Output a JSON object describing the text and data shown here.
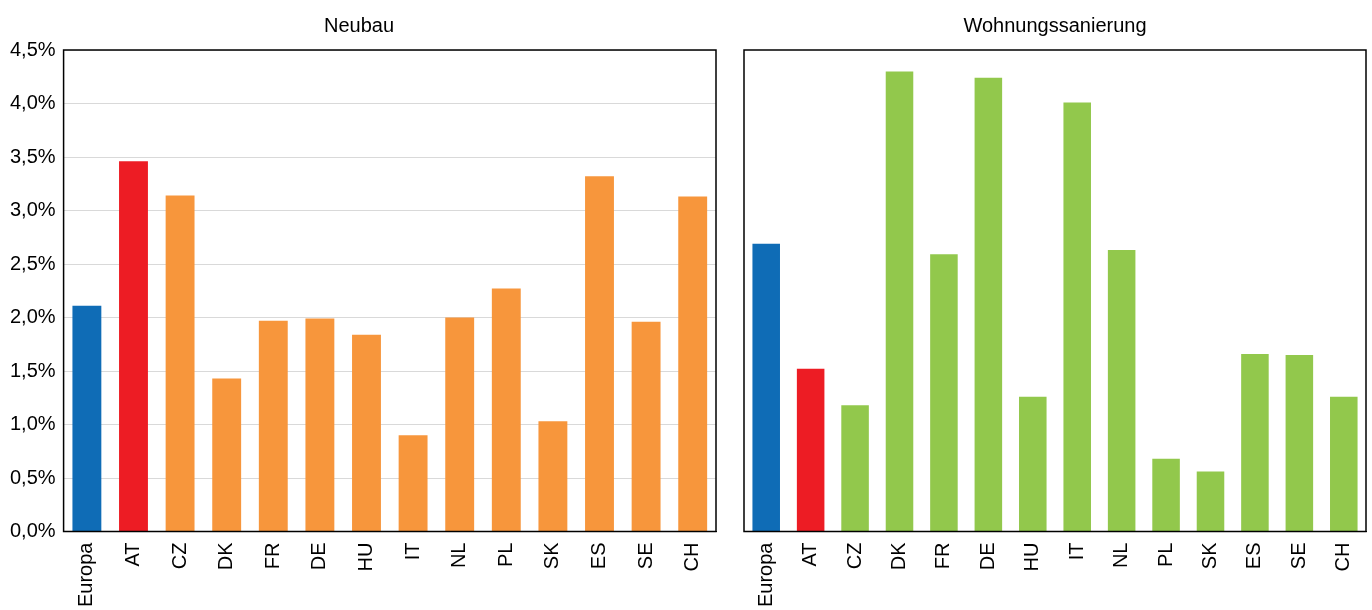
{
  "chart_data": [
    {
      "type": "bar",
      "title": "Neubau",
      "categories": [
        "Europa",
        "AT",
        "CZ",
        "DK",
        "FR",
        "DE",
        "HU",
        "IT",
        "NL",
        "PL",
        "SK",
        "ES",
        "SE",
        "CH"
      ],
      "values": [
        2.11,
        3.46,
        3.14,
        1.43,
        1.97,
        1.99,
        1.84,
        0.9,
        2.0,
        2.27,
        1.03,
        3.32,
        1.96,
        3.13
      ],
      "colors": [
        "#0f6cb6",
        "#ed1c24",
        "#f7963c",
        "#f7963c",
        "#f7963c",
        "#f7963c",
        "#f7963c",
        "#f7963c",
        "#f7963c",
        "#f7963c",
        "#f7963c",
        "#f7963c",
        "#f7963c",
        "#f7963c"
      ],
      "ylim": [
        0,
        4.5
      ],
      "yticks": [
        {
          "value": 0,
          "label": "0,0%"
        },
        {
          "value": 0.5,
          "label": "0,5%"
        },
        {
          "value": 1,
          "label": "1,0%"
        },
        {
          "value": 1.5,
          "label": "1,5%"
        },
        {
          "value": 2,
          "label": "2,0%"
        },
        {
          "value": 2.5,
          "label": "2,5%"
        },
        {
          "value": 3,
          "label": "3,0%"
        },
        {
          "value": 3.5,
          "label": "3,5%"
        },
        {
          "value": 4,
          "label": "4,0%"
        },
        {
          "value": 4.5,
          "label": "4,5%"
        }
      ],
      "grid": "y"
    },
    {
      "type": "bar",
      "title": "Wohnungssanierung",
      "categories": [
        "Europa",
        "AT",
        "CZ",
        "DK",
        "FR",
        "DE",
        "HU",
        "IT",
        "NL",
        "PL",
        "SK",
        "ES",
        "SE",
        "CH"
      ],
      "values": [
        2.69,
        1.52,
        1.18,
        4.3,
        2.59,
        4.24,
        1.26,
        4.01,
        2.63,
        0.68,
        0.56,
        1.66,
        1.65,
        1.26
      ],
      "colors": [
        "#0f6cb6",
        "#ed1c24",
        "#92c84c",
        "#92c84c",
        "#92c84c",
        "#92c84c",
        "#92c84c",
        "#92c84c",
        "#92c84c",
        "#92c84c",
        "#92c84c",
        "#92c84c",
        "#92c84c",
        "#92c84c"
      ],
      "ylim": [
        0,
        4.5
      ],
      "yticks": [
        {
          "value": 0,
          "label": null
        },
        {
          "value": 0.5,
          "label": null
        },
        {
          "value": 1,
          "label": null
        },
        {
          "value": 1.5,
          "label": null
        },
        {
          "value": 2,
          "label": null
        },
        {
          "value": 2.5,
          "label": null
        },
        {
          "value": 3,
          "label": null
        },
        {
          "value": 3.5,
          "label": null
        },
        {
          "value": 4,
          "label": null
        },
        {
          "value": 4.5,
          "label": null
        }
      ],
      "grid": "y",
      "tick_labels": "x"
    }
  ]
}
